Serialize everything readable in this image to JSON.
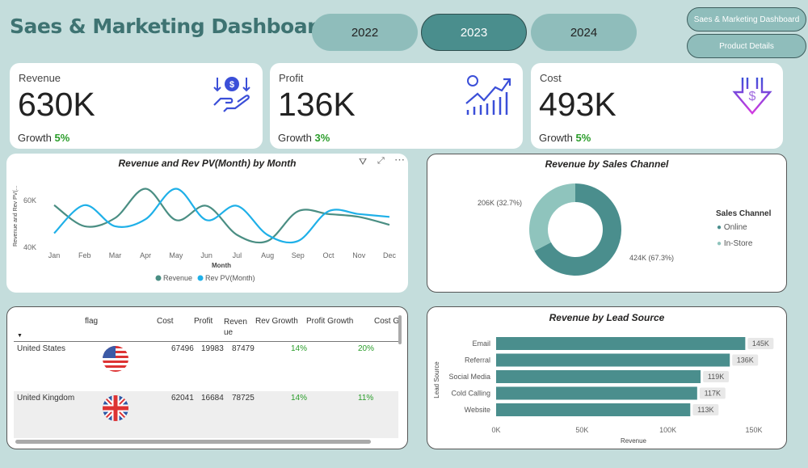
{
  "header": {
    "title": "Saes & Marketing Dashboard"
  },
  "years": [
    {
      "label": "2022",
      "active": false
    },
    {
      "label": "2023",
      "active": true
    },
    {
      "label": "2024",
      "active": false
    }
  ],
  "nav": {
    "dashboard": "Saes & Marketing Dashboard",
    "product": "Product Details"
  },
  "kpis": [
    {
      "label": "Revenue",
      "value": "630K",
      "growth_label": "Growth",
      "growth": "5%",
      "icon": "hand-money-icon"
    },
    {
      "label": "Profit",
      "value": "136K",
      "growth_label": "Growth",
      "growth": "3%",
      "icon": "growth-chart-icon"
    },
    {
      "label": "Cost",
      "value": "493K",
      "growth_label": "Growth",
      "growth": "5%",
      "icon": "cost-down-icon"
    }
  ],
  "colors": {
    "accent": "#4a8e8d",
    "light": "#8fc4bd",
    "revenue_line": "#4a8e83",
    "pv_line": "#1fb0e8",
    "growth": "#2a9d2a"
  },
  "chart_data": [
    {
      "type": "line",
      "title": "Revenue and Rev PV(Month) by Month",
      "xlabel": "Month",
      "ylabel": "Revenue and Rev PV(...",
      "categories": [
        "Jan",
        "Feb",
        "Mar",
        "Apr",
        "May",
        "Jun",
        "Jul",
        "Aug",
        "Sep",
        "Oct",
        "Nov",
        "Dec"
      ],
      "yticks": [
        "40K",
        "60K"
      ],
      "ylim": [
        40000,
        60000
      ],
      "series": [
        {
          "name": "Revenue",
          "values": [
            58000,
            49000,
            52500,
            65000,
            51600,
            57700,
            45300,
            42700,
            55400,
            54200,
            53000,
            49600
          ]
        },
        {
          "name": "Rev PV(Month)",
          "values": [
            46000,
            58000,
            49000,
            52000,
            65000,
            51600,
            57700,
            45300,
            42700,
            55400,
            54200,
            53000
          ]
        }
      ],
      "legend": "bottom"
    },
    {
      "type": "pie",
      "title": "Revenue by Sales Channel",
      "legend_title": "Sales Channel",
      "slices": [
        {
          "name": "Online",
          "value": 424000,
          "label": "424K (67.3%)"
        },
        {
          "name": "In-Store",
          "value": 206000,
          "label": "206K (32.7%)"
        }
      ],
      "legend": "right"
    },
    {
      "type": "bar",
      "title": "Revenue by Lead Source",
      "xlabel": "Revenue",
      "ylabel": "Lead Source",
      "categories": [
        "Email",
        "Referral",
        "Social Media",
        "Cold Calling",
        "Website"
      ],
      "values": [
        145000,
        136000,
        119000,
        117000,
        113000
      ],
      "labels": [
        "145K",
        "136K",
        "119K",
        "117K",
        "113K"
      ],
      "xticks": [
        "0K",
        "50K",
        "100K",
        "150K"
      ],
      "xlim": [
        0,
        150000
      ]
    }
  ],
  "table": {
    "headers": [
      "flag",
      "Cost",
      "Profit",
      "Reven ue",
      "Rev Growth",
      "Profit Growth",
      "Cost G"
    ],
    "rows": [
      {
        "country": "United States",
        "flag": "us-flag",
        "cost": "67496",
        "profit": "19983",
        "revenue": "87479",
        "rev_growth": "14%",
        "profit_growth": "20%"
      },
      {
        "country": "United Kingdom",
        "flag": "uk-flag",
        "cost": "62041",
        "profit": "16684",
        "revenue": "78725",
        "rev_growth": "14%",
        "profit_growth": "11%"
      }
    ]
  }
}
